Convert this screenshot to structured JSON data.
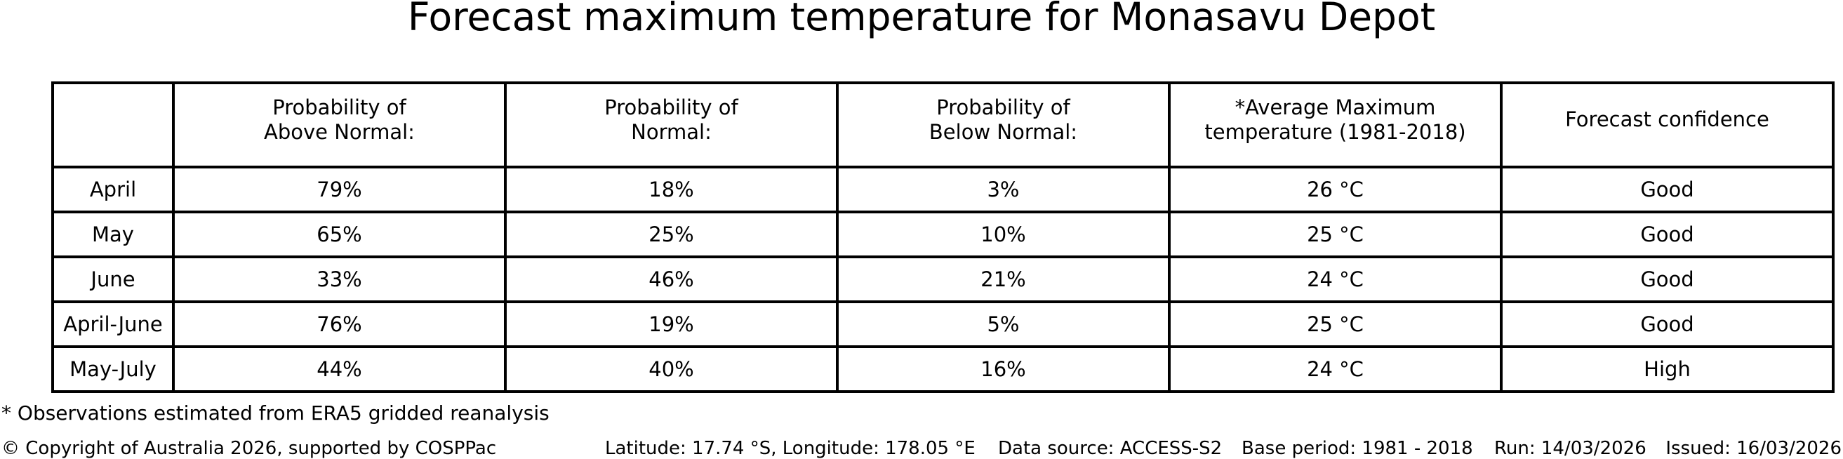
{
  "title": "Forecast maximum temperature for Monasavu Depot",
  "chart_data": {
    "type": "table",
    "title": "Forecast maximum temperature for Monasavu Depot",
    "columns": [
      "",
      "Probability of\nAbove Normal:",
      "Probability of\nNormal:",
      "Probability of\nBelow Normal:",
      "*Average Maximum\ntemperature (1981-2018)",
      "Forecast confidence"
    ],
    "rows": [
      [
        "April",
        "79%",
        "18%",
        "3%",
        "26 °C",
        "Good"
      ],
      [
        "May",
        "65%",
        "25%",
        "10%",
        "25 °C",
        "Good"
      ],
      [
        "June",
        "33%",
        "46%",
        "21%",
        "24 °C",
        "Good"
      ],
      [
        "April-June",
        "76%",
        "19%",
        "5%",
        "25 °C",
        "Good"
      ],
      [
        "May-July",
        "44%",
        "40%",
        "16%",
        "24 °C",
        "High"
      ]
    ],
    "layout_hints": {
      "grid": "all-borders",
      "first_header_cell_empty": true,
      "period_column_alignment": "left",
      "data_alignment": "center"
    }
  },
  "footnote": "* Observations estimated from ERA5 gridded reanalysis",
  "footer": {
    "copyright": "© Copyright of Australia 2026, supported by COSPPac",
    "location": "Latitude: 17.74 °S, Longitude: 178.05 °E",
    "data_source": "Data source: ACCESS-S2",
    "base_period": "Base period: 1981 - 2018",
    "run": "Run: 14/03/2026",
    "issued": "Issued: 16/03/2026"
  },
  "colors": {
    "background": "#ffffff",
    "text": "#000000",
    "border": "#000000"
  }
}
